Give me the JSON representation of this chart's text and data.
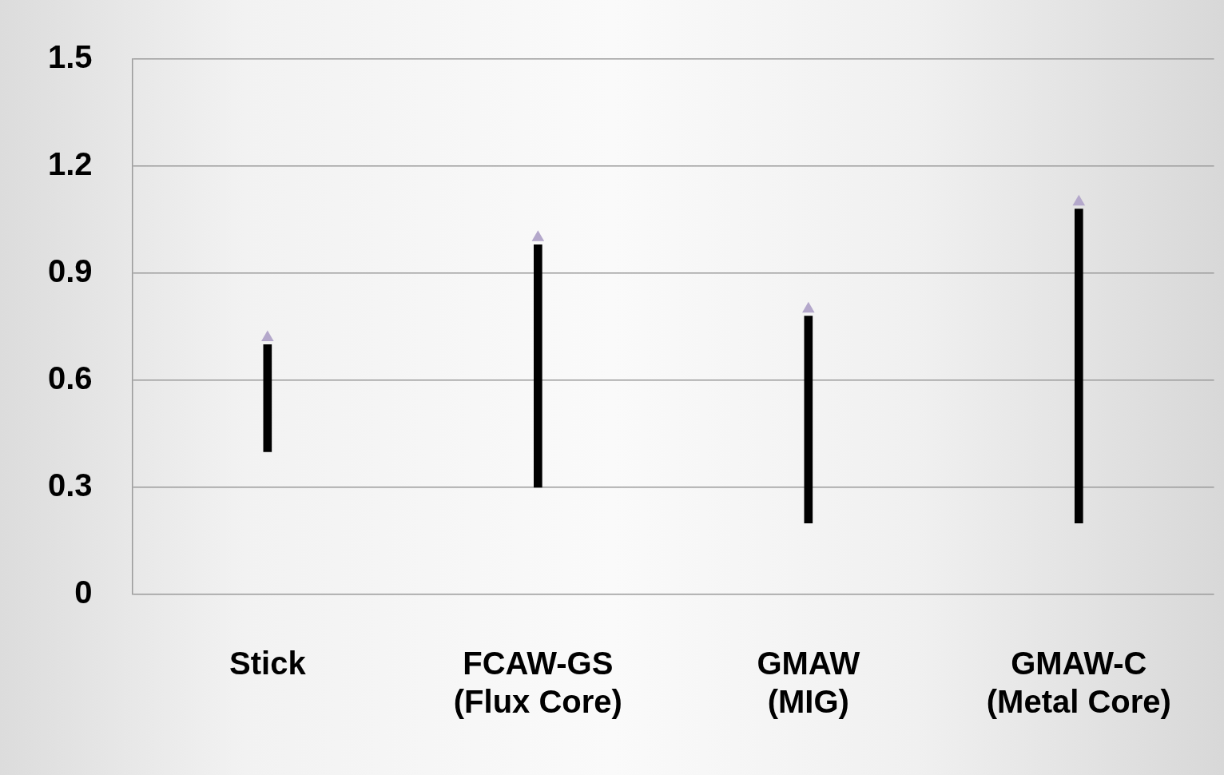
{
  "chart_data": {
    "type": "bar",
    "categories": [
      "Stick",
      "FCAW-GS\n(Flux Core)",
      "GMAW\n(MIG)",
      "GMAW-C\n(Metal Core)"
    ],
    "series": [
      {
        "color": "#000000",
        "base": [
          0.4,
          0.3,
          0.2,
          0.2
        ],
        "values": [
          0.3,
          0.68,
          0.58,
          0.88
        ]
      },
      {
        "type": "scatter",
        "marker": "triangle",
        "color": "#b4a8cb",
        "x": [
          "Stick",
          "FCAW-GS\n(Flux Core)",
          "GMAW\n(MIG)",
          "GMAW-C\n(Metal Core)"
        ],
        "values": [
          0.72,
          1.0,
          0.8,
          1.1
        ]
      }
    ],
    "ylim": [
      0,
      1.5
    ],
    "yticks": [
      0,
      0.3,
      0.6,
      0.9,
      1.2,
      1.5
    ],
    "grid": "y",
    "legend": false
  }
}
